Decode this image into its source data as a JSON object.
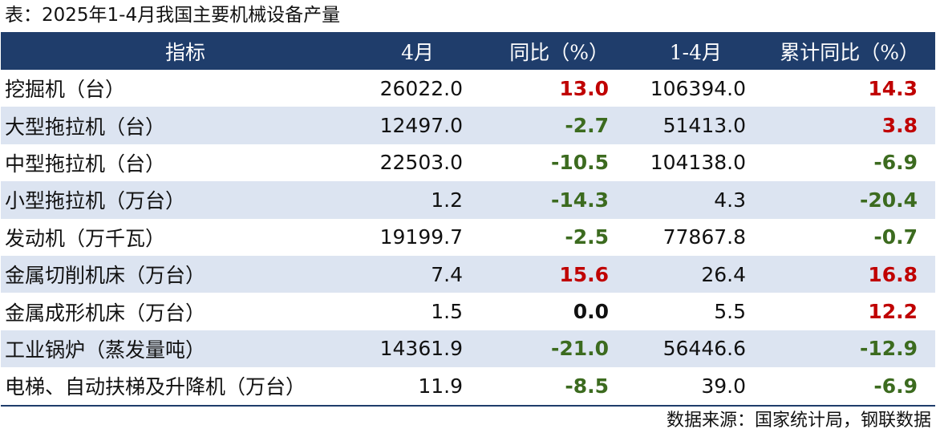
{
  "caption": "表：2025年1-4月我国主要机械设备产量",
  "table": {
    "headers": [
      "指标",
      "4月",
      "同比（%）",
      "1-4月",
      "累计同比（%）"
    ],
    "rows": [
      {
        "name": "挖掘机（台）",
        "april": "26022.0",
        "yoy": "13.0",
        "jan_apr": "106394.0",
        "cum_yoy": "14.3"
      },
      {
        "name": "大型拖拉机（台）",
        "april": "12497.0",
        "yoy": "-2.7",
        "jan_apr": "51413.0",
        "cum_yoy": "3.8"
      },
      {
        "name": "中型拖拉机（台）",
        "april": "22503.0",
        "yoy": "-10.5",
        "jan_apr": "104138.0",
        "cum_yoy": "-6.9"
      },
      {
        "name": "小型拖拉机（万台）",
        "april": "1.2",
        "yoy": "-14.3",
        "jan_apr": "4.3",
        "cum_yoy": "-20.4"
      },
      {
        "name": "发动机（万千瓦）",
        "april": "19199.7",
        "yoy": "-2.5",
        "jan_apr": "77867.8",
        "cum_yoy": "-0.7"
      },
      {
        "name": "金属切削机床（万台）",
        "april": "7.4",
        "yoy": "15.6",
        "jan_apr": "26.4",
        "cum_yoy": "16.8"
      },
      {
        "name": "金属成形机床（万台）",
        "april": "1.5",
        "yoy": "0.0",
        "jan_apr": "5.5",
        "cum_yoy": "12.2"
      },
      {
        "name": "工业锅炉（蒸发量吨）",
        "april": "14361.9",
        "yoy": "-21.0",
        "jan_apr": "56446.6",
        "cum_yoy": "-12.9"
      },
      {
        "name": "电梯、自动扶梯及升降机（万台）",
        "april": "11.9",
        "yoy": "-8.5",
        "jan_apr": "39.0",
        "cum_yoy": "-6.9"
      }
    ]
  },
  "colors": {
    "header_bg": "#1f3d6b",
    "stripe_bg": "#dce4f1",
    "positive": "#c00000",
    "negative": "#3c6b1f"
  },
  "source": "数据来源：国家统计局，钢联数据"
}
